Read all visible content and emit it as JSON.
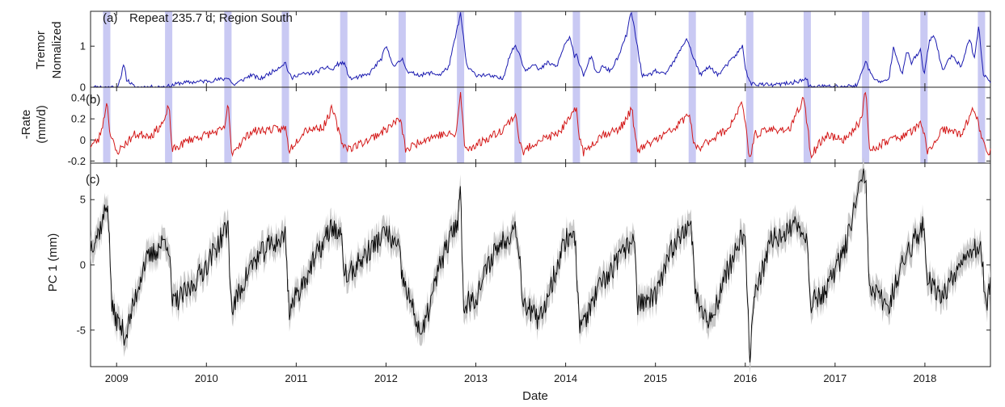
{
  "figure": {
    "xlabel": "Date",
    "x_range": [
      2008.71,
      2018.73
    ],
    "x_ticks": [
      2009,
      2010,
      2011,
      2012,
      2013,
      2014,
      2015,
      2016,
      2017,
      2018
    ],
    "x_tick_labels": [
      "2009",
      "2010",
      "2011",
      "2012",
      "2013",
      "2014",
      "2015",
      "2016",
      "2017",
      "2018"
    ],
    "colors": {
      "shade": "#c9c9f3",
      "tremor": "#1b1bb0",
      "rate": "#d41b1b",
      "pc1": "#000000",
      "pc1_band": "#c8c8c8"
    }
  },
  "chart_data": [
    {
      "id": "a",
      "type": "line",
      "panel_label": "(a)",
      "title": "Repeat 235.7 d; Region South",
      "ylabel": [
        "Tremor",
        "Nomalized"
      ],
      "ylim": [
        0,
        1.85
      ],
      "yticks": [
        0,
        1
      ],
      "ytick_labels": [
        "0",
        "1"
      ],
      "shaded_events": [
        2008.89,
        2009.58,
        2010.24,
        2010.88,
        2011.53,
        2012.18,
        2012.83,
        2013.47,
        2014.12,
        2014.76,
        2015.41,
        2016.05,
        2016.69,
        2017.34,
        2017.99,
        2018.63
      ],
      "series": [
        {
          "name": "tremor",
          "color": "#1b1bb0",
          "x": [
            2008.71,
            2009.0,
            2009.05,
            2009.08,
            2009.11,
            2009.2,
            2009.4,
            2009.58,
            2009.7,
            2010.0,
            2010.2,
            2010.24,
            2010.27,
            2010.3,
            2010.5,
            2010.6,
            2010.75,
            2010.88,
            2010.9,
            2010.95,
            2011.0,
            2011.2,
            2011.35,
            2011.4,
            2011.45,
            2011.53,
            2011.6,
            2011.8,
            2011.95,
            2012.0,
            2012.05,
            2012.1,
            2012.18,
            2012.25,
            2012.4,
            2012.5,
            2012.6,
            2012.7,
            2012.78,
            2012.83,
            2012.9,
            2013.0,
            2013.1,
            2013.3,
            2013.38,
            2013.43,
            2013.47,
            2013.55,
            2013.65,
            2013.7,
            2013.8,
            2013.9,
            2014.0,
            2014.05,
            2014.1,
            2014.12,
            2014.2,
            2014.28,
            2014.35,
            2014.4,
            2014.5,
            2014.6,
            2014.68,
            2014.73,
            2014.76,
            2014.85,
            2014.9,
            2015.0,
            2015.1,
            2015.2,
            2015.3,
            2015.35,
            2015.41,
            2015.5,
            2015.6,
            2015.7,
            2015.8,
            2015.9,
            2015.97,
            2016.0,
            2016.05,
            2016.1,
            2016.3,
            2016.5,
            2016.69,
            2016.7,
            2016.9,
            2017.1,
            2017.25,
            2017.3,
            2017.34,
            2017.4,
            2017.5,
            2017.6,
            2017.65,
            2017.75,
            2017.8,
            2017.85,
            2017.95,
            2017.99,
            2018.05,
            2018.1,
            2018.2,
            2018.3,
            2018.4,
            2018.5,
            2018.55,
            2018.6,
            2018.65,
            2018.73
          ],
          "y": [
            0,
            0,
            0.2,
            0.62,
            0.2,
            0,
            0,
            0.02,
            0.1,
            0.15,
            0.2,
            0.25,
            0.15,
            0.05,
            0.3,
            0.2,
            0.4,
            0.6,
            0.45,
            0.2,
            0.3,
            0.35,
            0.5,
            0.4,
            0.55,
            0.6,
            0.2,
            0.3,
            0.7,
            1.0,
            0.7,
            0.5,
            0.7,
            0.35,
            0.3,
            0.35,
            0.3,
            0.5,
            1.3,
            1.8,
            0.5,
            0.3,
            0.3,
            0.2,
            0.8,
            1.0,
            0.9,
            0.4,
            0.6,
            0.4,
            0.6,
            0.5,
            1.1,
            1.2,
            0.7,
            0.8,
            0.3,
            0.75,
            0.3,
            0.5,
            0.4,
            0.8,
            1.3,
            1.85,
            1.5,
            0.3,
            0.25,
            0.4,
            0.3,
            0.6,
            1.0,
            1.2,
            0.8,
            0.3,
            0.5,
            0.3,
            0.55,
            0.8,
            1.0,
            0.5,
            0.1,
            0.08,
            0.05,
            0.1,
            0.2,
            0.02,
            0.02,
            0.02,
            0.05,
            0.4,
            0.65,
            0.3,
            0.1,
            0.2,
            1.0,
            0.3,
            0.9,
            0.6,
            0.9,
            0.3,
            1.1,
            1.3,
            0.4,
            0.8,
            0.5,
            1.2,
            0.7,
            1.5,
            0.3,
            0.15
          ]
        }
      ]
    },
    {
      "id": "b",
      "type": "line",
      "panel_label": "(b)",
      "ylabel": [
        "-Rate",
        "(mm/d)"
      ],
      "ylim": [
        -0.22,
        0.5
      ],
      "yticks": [
        -0.2,
        0,
        0.2,
        0.4
      ],
      "ytick_labels": [
        "-0.2",
        "0",
        "0.2",
        "0.4"
      ],
      "shaded_events": [
        2008.89,
        2009.58,
        2010.24,
        2010.88,
        2011.53,
        2012.18,
        2012.83,
        2013.47,
        2014.12,
        2014.76,
        2015.41,
        2016.05,
        2016.69,
        2017.34,
        2017.99,
        2018.63
      ],
      "series": [
        {
          "name": "-rate",
          "color": "#d41b1b",
          "x": [
            2008.71,
            2008.8,
            2008.86,
            2008.89,
            2008.93,
            2009.0,
            2009.2,
            2009.4,
            2009.55,
            2009.58,
            2009.62,
            2009.8,
            2010.0,
            2010.2,
            2010.24,
            2010.28,
            2010.5,
            2010.7,
            2010.85,
            2010.88,
            2010.92,
            2011.1,
            2011.3,
            2011.4,
            2011.5,
            2011.53,
            2011.6,
            2011.8,
            2012.0,
            2012.15,
            2012.18,
            2012.22,
            2012.4,
            2012.6,
            2012.78,
            2012.83,
            2012.88,
            2013.1,
            2013.3,
            2013.45,
            2013.47,
            2013.52,
            2013.7,
            2013.9,
            2014.05,
            2014.12,
            2014.15,
            2014.2,
            2014.4,
            2014.6,
            2014.74,
            2014.76,
            2014.8,
            2015.0,
            2015.2,
            2015.38,
            2015.41,
            2015.45,
            2015.6,
            2015.8,
            2015.97,
            2016.05,
            2016.1,
            2016.3,
            2016.5,
            2016.65,
            2016.69,
            2016.73,
            2016.9,
            2017.1,
            2017.3,
            2017.34,
            2017.38,
            2017.6,
            2017.8,
            2017.95,
            2017.99,
            2018.03,
            2018.2,
            2018.4,
            2018.55,
            2018.63,
            2018.68,
            2018.73
          ],
          "y": [
            -0.05,
            0.0,
            0.2,
            0.38,
            0.05,
            -0.12,
            0.05,
            0.05,
            0.2,
            0.35,
            -0.1,
            0.0,
            0.05,
            0.1,
            0.35,
            -0.12,
            0.08,
            0.1,
            0.1,
            0.12,
            -0.1,
            0.1,
            0.12,
            0.3,
            0.0,
            -0.05,
            -0.08,
            0.0,
            0.1,
            0.2,
            0.1,
            -0.1,
            0.0,
            0.05,
            0.05,
            0.45,
            -0.1,
            0.0,
            0.1,
            0.25,
            0.05,
            -0.12,
            0.0,
            0.05,
            0.2,
            0.3,
            0.05,
            -0.12,
            0.05,
            0.1,
            0.3,
            0.1,
            -0.1,
            0.0,
            0.1,
            0.25,
            0.05,
            -0.1,
            0.0,
            0.1,
            0.35,
            -0.2,
            0.05,
            0.1,
            0.1,
            0.4,
            0.15,
            -0.15,
            0.05,
            0.0,
            0.2,
            0.5,
            -0.1,
            0.0,
            0.05,
            0.15,
            0.05,
            -0.12,
            0.1,
            0.05,
            0.3,
            0.05,
            -0.12,
            -0.1
          ]
        }
      ]
    },
    {
      "id": "c",
      "type": "line",
      "panel_label": "(c)",
      "ylabel": [
        "PC 1 (mm)"
      ],
      "ylim": [
        -7.8,
        7.8
      ],
      "yticks": [
        -5,
        0,
        5
      ],
      "ytick_labels": [
        "-5",
        "0",
        "5"
      ],
      "uncertainty_band_mm": 0.9,
      "series": [
        {
          "name": "PC 1",
          "color": "#000000",
          "x": [
            2008.71,
            2008.8,
            2008.85,
            2008.9,
            2008.95,
            2009.1,
            2009.3,
            2009.55,
            2009.58,
            2009.62,
            2009.8,
            2010.0,
            2010.2,
            2010.24,
            2010.28,
            2010.5,
            2010.7,
            2010.85,
            2010.88,
            2010.92,
            2011.1,
            2011.4,
            2011.5,
            2011.53,
            2011.56,
            2011.8,
            2012.0,
            2012.15,
            2012.18,
            2012.4,
            2012.6,
            2012.8,
            2012.83,
            2012.86,
            2013.0,
            2013.2,
            2013.45,
            2013.47,
            2013.52,
            2013.7,
            2014.0,
            2014.1,
            2014.12,
            2014.16,
            2014.4,
            2014.7,
            2014.76,
            2014.8,
            2015.0,
            2015.2,
            2015.38,
            2015.41,
            2015.45,
            2015.6,
            2015.8,
            2015.95,
            2016.0,
            2016.05,
            2016.1,
            2016.3,
            2016.6,
            2016.69,
            2016.73,
            2016.9,
            2017.1,
            2017.3,
            2017.34,
            2017.38,
            2017.6,
            2017.8,
            2017.99,
            2018.03,
            2018.2,
            2018.4,
            2018.55,
            2018.63,
            2018.68,
            2018.73
          ],
          "y": [
            1.5,
            2.5,
            3.5,
            5.0,
            -3.5,
            -5.5,
            0.0,
            2.0,
            1.5,
            -3.0,
            -2.0,
            0.0,
            2.5,
            3.0,
            -3.5,
            0.0,
            1.5,
            2.0,
            2.5,
            -3.5,
            -1.0,
            3.0,
            2.0,
            0.0,
            -1.0,
            1.0,
            2.5,
            1.0,
            -1.0,
            -5.5,
            0.0,
            3.5,
            6.0,
            -3.0,
            -2.5,
            1.0,
            3.0,
            2.0,
            -2.5,
            -4.5,
            2.0,
            2.5,
            0.0,
            -5.0,
            -1.5,
            1.5,
            2.5,
            -3.0,
            -2.5,
            1.5,
            3.5,
            2.0,
            -2.5,
            -4.5,
            -0.5,
            2.0,
            1.5,
            -7.0,
            -2.5,
            2.0,
            3.0,
            2.0,
            -3.0,
            -2.0,
            1.0,
            6.5,
            7.0,
            -2.0,
            -3.0,
            1.0,
            3.0,
            -1.0,
            -2.5,
            0.5,
            1.5,
            1.0,
            -3.5,
            -1.5
          ]
        }
      ]
    }
  ]
}
